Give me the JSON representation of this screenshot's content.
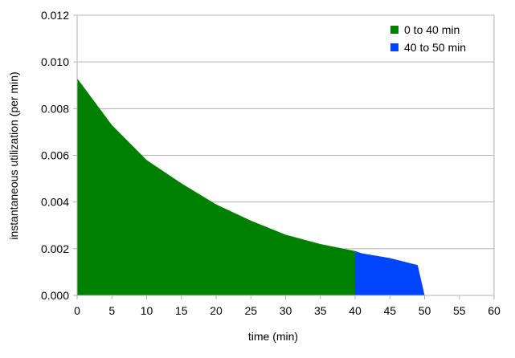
{
  "chart_data": {
    "type": "area",
    "title": "",
    "xlabel": "time (min)",
    "ylabel": "instantaneous utilization (per min)",
    "xlim": [
      0,
      60
    ],
    "ylim": [
      0,
      0.012
    ],
    "x_ticks": [
      "0",
      "5",
      "10",
      "15",
      "20",
      "25",
      "30",
      "35",
      "40",
      "45",
      "50",
      "55",
      "60"
    ],
    "y_ticks": [
      "0.000",
      "0.002",
      "0.004",
      "0.006",
      "0.008",
      "0.010",
      "0.012"
    ],
    "grid": true,
    "legend_position": "top-right",
    "series": [
      {
        "name": "0 to 40 min",
        "color": "#008000",
        "x": [
          0,
          5,
          10,
          15,
          20,
          25,
          30,
          35,
          40,
          41
        ],
        "y": [
          0.0093,
          0.0073,
          0.0058,
          0.0048,
          0.0039,
          0.0032,
          0.0026,
          0.0022,
          0.0019,
          0.0
        ]
      },
      {
        "name": "40 to 50 min",
        "color": "#0044ff",
        "x": [
          40,
          41,
          45,
          49,
          50
        ],
        "y": [
          0.0019,
          0.0018,
          0.0016,
          0.0013,
          0.0
        ]
      }
    ]
  }
}
